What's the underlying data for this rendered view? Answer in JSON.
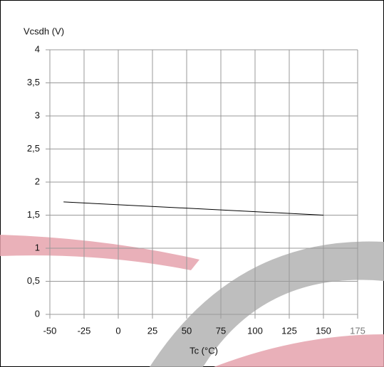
{
  "chart_data": {
    "type": "line",
    "x_label": "Tc (°C)",
    "y_label": "Vcsdh (V)",
    "x": [
      -40,
      150
    ],
    "series": [
      {
        "name": null,
        "color": "#000000",
        "values": [
          1.7,
          1.5
        ]
      }
    ],
    "xlim": [
      -50,
      175
    ],
    "xticks": [
      -50,
      -25,
      0,
      25,
      50,
      75,
      100,
      125,
      150,
      175
    ],
    "ylim": [
      0,
      4
    ],
    "yticks": [
      0,
      {
        "value": 0.5,
        "label": "0,5"
      },
      1,
      {
        "value": 1.5,
        "label": "1,5"
      },
      2,
      {
        "value": 2.5,
        "label": "2,5"
      },
      3,
      {
        "value": 3.5,
        "label": "3,5"
      },
      4
    ],
    "grid": true
  }
}
